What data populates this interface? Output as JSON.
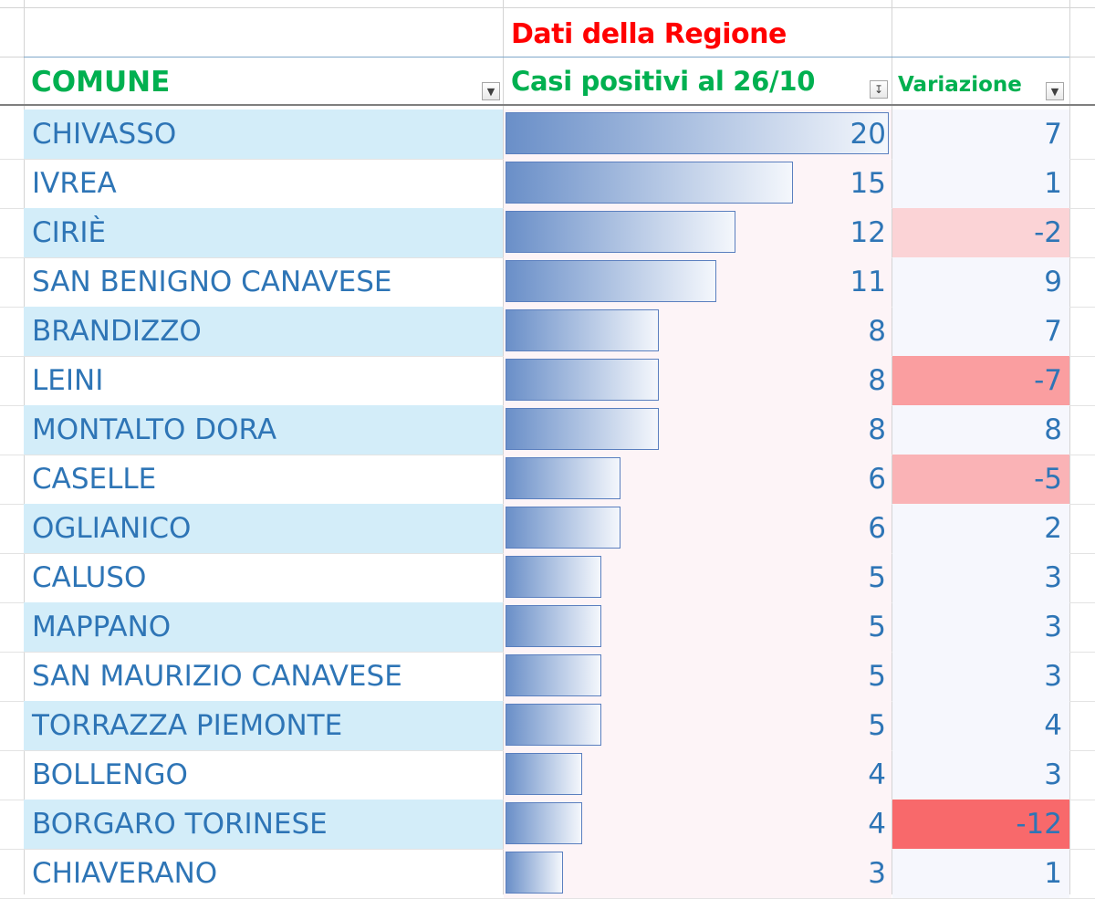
{
  "title": "Dati della Regione",
  "headers": {
    "comune": "COMUNE",
    "casi": "Casi positivi al 26/10",
    "variazione": "Variazione"
  },
  "icons": {
    "filter": "dropdown-filter-icon",
    "sorted_filter": "sort-descending-filter-icon"
  },
  "colors": {
    "title": "#ff0000",
    "header": "#00b050",
    "text": "#2e75b6",
    "band": "#d3edf9",
    "bar_start": "#6a8fc8",
    "negative_strong": "#f8696b"
  },
  "rows": [
    {
      "comune": "CHIVASSO",
      "casi": "20",
      "variazione": "7"
    },
    {
      "comune": "IVREA",
      "casi": "15",
      "variazione": "1"
    },
    {
      "comune": "CIRIÈ",
      "casi": "12",
      "variazione": "-2"
    },
    {
      "comune": "SAN BENIGNO CANAVESE",
      "casi": "11",
      "variazione": "9"
    },
    {
      "comune": "BRANDIZZO",
      "casi": "8",
      "variazione": "7"
    },
    {
      "comune": "LEINI",
      "casi": "8",
      "variazione": "-7"
    },
    {
      "comune": "MONTALTO DORA",
      "casi": "8",
      "variazione": "8"
    },
    {
      "comune": "CASELLE",
      "casi": "6",
      "variazione": "-5"
    },
    {
      "comune": "OGLIANICO",
      "casi": "6",
      "variazione": "2"
    },
    {
      "comune": "CALUSO",
      "casi": "5",
      "variazione": "3"
    },
    {
      "comune": "MAPPANO",
      "casi": "5",
      "variazione": "3"
    },
    {
      "comune": "SAN MAURIZIO CANAVESE",
      "casi": "5",
      "variazione": "3"
    },
    {
      "comune": "TORRAZZA PIEMONTE",
      "casi": "5",
      "variazione": "4"
    },
    {
      "comune": "BOLLENGO",
      "casi": "4",
      "variazione": "3"
    },
    {
      "comune": "BORGARO TORINESE",
      "casi": "4",
      "variazione": "-12"
    },
    {
      "comune": "CHIAVERANO",
      "casi": "3",
      "variazione": "1"
    }
  ]
}
